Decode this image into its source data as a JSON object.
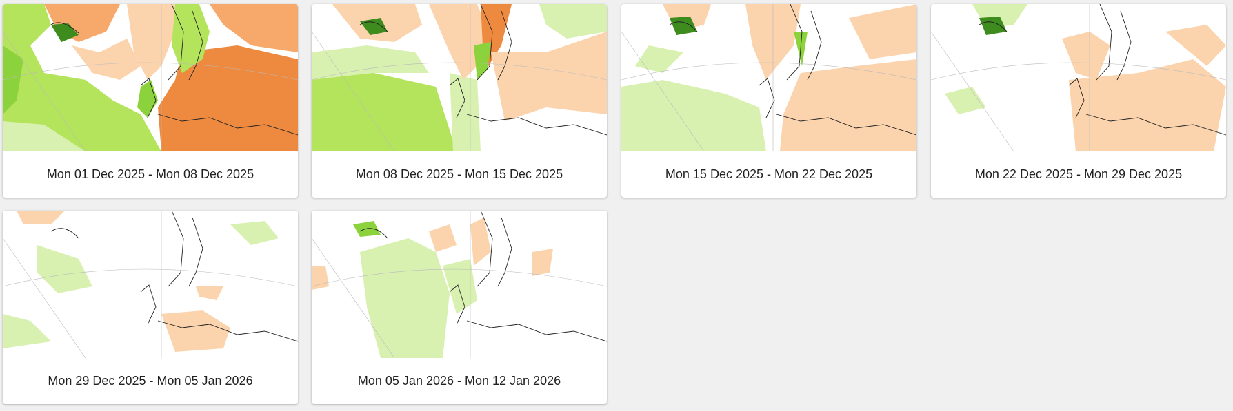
{
  "colors": {
    "background": "#f0f0f0",
    "card": "#ffffff",
    "positive_light": "#d8f0b0",
    "positive_mid": "#b4e35c",
    "positive_strong": "#8cd23c",
    "positive_dark": "#3e8c1e",
    "negative_light": "#fbd3ad",
    "negative_mid": "#f7a96c",
    "negative_strong": "#ee8a3f",
    "coastline": "#222222",
    "gridline": "#bbbbbb"
  },
  "cards": [
    {
      "label": "Mon 01 Dec 2025 - Mon 08 Dec 2025",
      "map_icon": "europe-weekly-anomaly-map"
    },
    {
      "label": "Mon 08 Dec 2025 - Mon 15 Dec 2025",
      "map_icon": "europe-weekly-anomaly-map"
    },
    {
      "label": "Mon 15 Dec 2025 - Mon 22 Dec 2025",
      "map_icon": "europe-weekly-anomaly-map"
    },
    {
      "label": "Mon 22 Dec 2025 - Mon 29 Dec 2025",
      "map_icon": "europe-weekly-anomaly-map"
    },
    {
      "label": "Mon 29 Dec 2025 - Mon 05 Jan 2026",
      "map_icon": "europe-weekly-anomaly-map"
    },
    {
      "label": "Mon 05 Jan 2026 - Mon 12 Jan 2026",
      "map_icon": "europe-weekly-anomaly-map"
    }
  ]
}
